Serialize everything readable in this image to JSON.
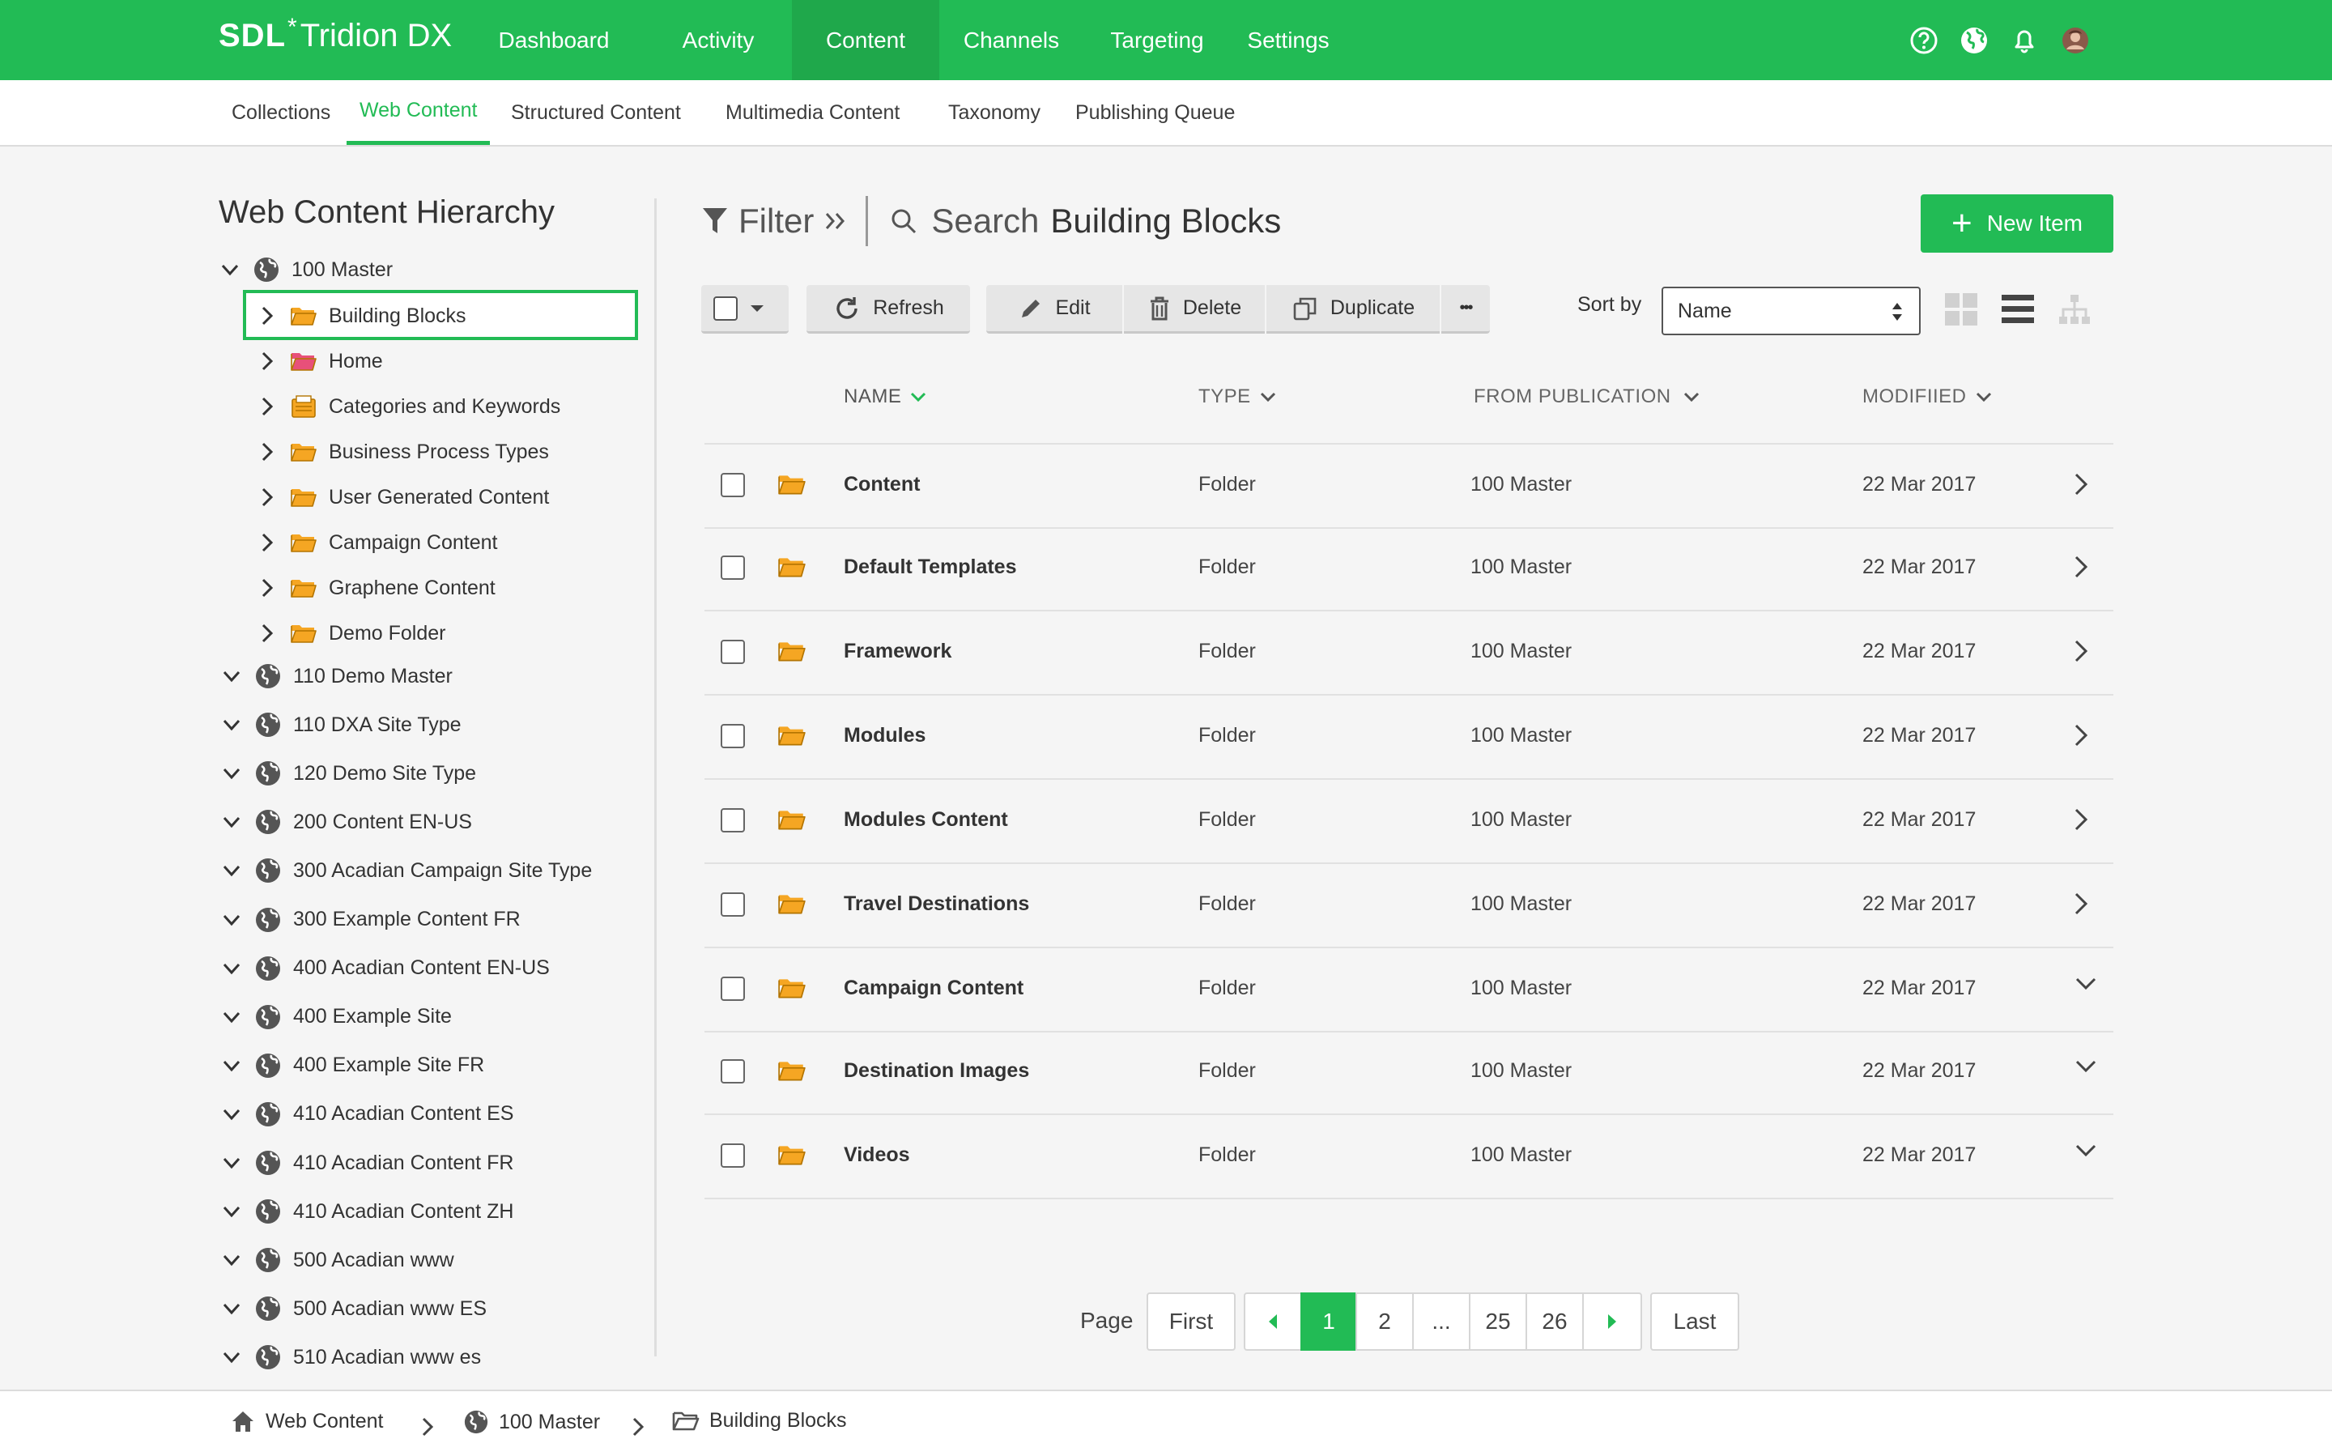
{
  "brand": {
    "sdl": "SDL",
    "star": "*",
    "product": "Tridion DX"
  },
  "topnav": {
    "items": [
      {
        "label": "Dashboard"
      },
      {
        "label": "Activity"
      },
      {
        "label": "Content"
      },
      {
        "label": "Channels"
      },
      {
        "label": "Targeting"
      },
      {
        "label": "Settings"
      }
    ],
    "active": "Content",
    "icons": [
      "help-icon",
      "globe-icon",
      "bell-icon",
      "avatar"
    ]
  },
  "subnav": {
    "items": [
      {
        "label": "Collections"
      },
      {
        "label": "Web Content"
      },
      {
        "label": "Structured Content"
      },
      {
        "label": "Multimedia Content"
      },
      {
        "label": "Taxonomy"
      },
      {
        "label": "Publishing Queue"
      }
    ],
    "active": "Web Content"
  },
  "sidebar": {
    "title": "Web Content Hierarchy",
    "root": {
      "label": "100 Master"
    },
    "children": [
      {
        "label": "Building Blocks",
        "icon": "folder-icon",
        "selected": true
      },
      {
        "label": "Home",
        "icon": "folder-pink-icon"
      },
      {
        "label": "Categories and Keywords",
        "icon": "categories-icon"
      },
      {
        "label": "Business Process Types",
        "icon": "folder-icon"
      },
      {
        "label": "User Generated Content",
        "icon": "folder-icon"
      },
      {
        "label": "Campaign Content",
        "icon": "folder-icon"
      },
      {
        "label": "Graphene Content",
        "icon": "folder-icon"
      },
      {
        "label": "Demo Folder",
        "icon": "folder-icon"
      }
    ],
    "publications": [
      {
        "label": "110 Demo Master"
      },
      {
        "label": "110 DXA Site Type"
      },
      {
        "label": "120 Demo Site Type"
      },
      {
        "label": "200 Content EN-US"
      },
      {
        "label": "300 Acadian Campaign Site Type"
      },
      {
        "label": "300 Example Content FR"
      },
      {
        "label": "400 Acadian Content EN-US"
      },
      {
        "label": "400 Example Site"
      },
      {
        "label": "400 Example Site FR"
      },
      {
        "label": "410 Acadian Content ES"
      },
      {
        "label": "410 Acadian Content FR"
      },
      {
        "label": "410 Acadian Content ZH"
      },
      {
        "label": "500 Acadian www"
      },
      {
        "label": "500 Acadian www ES"
      },
      {
        "label": "510 Acadian www es"
      }
    ]
  },
  "main": {
    "filter_label": "Filter",
    "search_label": "Search",
    "context_title": "Building Blocks",
    "new_item_label": "New Item",
    "toolbar": {
      "refresh": "Refresh",
      "edit": "Edit",
      "delete": "Delete",
      "duplicate": "Duplicate",
      "more": "•••"
    },
    "sort_label": "Sort by",
    "sort_value": "Name",
    "columns": {
      "name": "NAME",
      "type": "TYPE",
      "from_publication": "FROM PUBLICATION",
      "modified": "MODIFIIED"
    },
    "rows": [
      {
        "name": "Content",
        "type": "Folder",
        "publication": "100 Master",
        "modified": "22 Mar 2017",
        "chevron": "right"
      },
      {
        "name": "Default Templates",
        "type": "Folder",
        "publication": "100 Master",
        "modified": "22 Mar 2017",
        "chevron": "right"
      },
      {
        "name": "Framework",
        "type": "Folder",
        "publication": "100 Master",
        "modified": "22 Mar 2017",
        "chevron": "right"
      },
      {
        "name": "Modules",
        "type": "Folder",
        "publication": "100 Master",
        "modified": "22 Mar 2017",
        "chevron": "right"
      },
      {
        "name": "Modules Content",
        "type": "Folder",
        "publication": "100 Master",
        "modified": "22 Mar 2017",
        "chevron": "right"
      },
      {
        "name": "Travel Destinations",
        "type": "Folder",
        "publication": "100 Master",
        "modified": "22 Mar 2017",
        "chevron": "right"
      },
      {
        "name": "Campaign Content",
        "type": "Folder",
        "publication": "100 Master",
        "modified": "22 Mar 2017",
        "chevron": "down"
      },
      {
        "name": "Destination Images",
        "type": "Folder",
        "publication": "100 Master",
        "modified": "22 Mar 2017",
        "chevron": "down"
      },
      {
        "name": "Videos",
        "type": "Folder",
        "publication": "100 Master",
        "modified": "22 Mar 2017",
        "chevron": "down"
      }
    ]
  },
  "pagination": {
    "label": "Page",
    "first": "First",
    "pages": [
      "1",
      "2",
      "...",
      "25",
      "26"
    ],
    "current": "1",
    "last": "Last"
  },
  "breadcrumb": {
    "items": [
      {
        "label": "Web Content",
        "icon": "home-icon"
      },
      {
        "label": "100 Master",
        "icon": "globe-icon"
      },
      {
        "label": "Building Blocks",
        "icon": "folder-outline-icon"
      }
    ]
  },
  "colors": {
    "accent": "#22bb55",
    "folder": "#f5a623",
    "folder_pink": "#e8507a"
  }
}
